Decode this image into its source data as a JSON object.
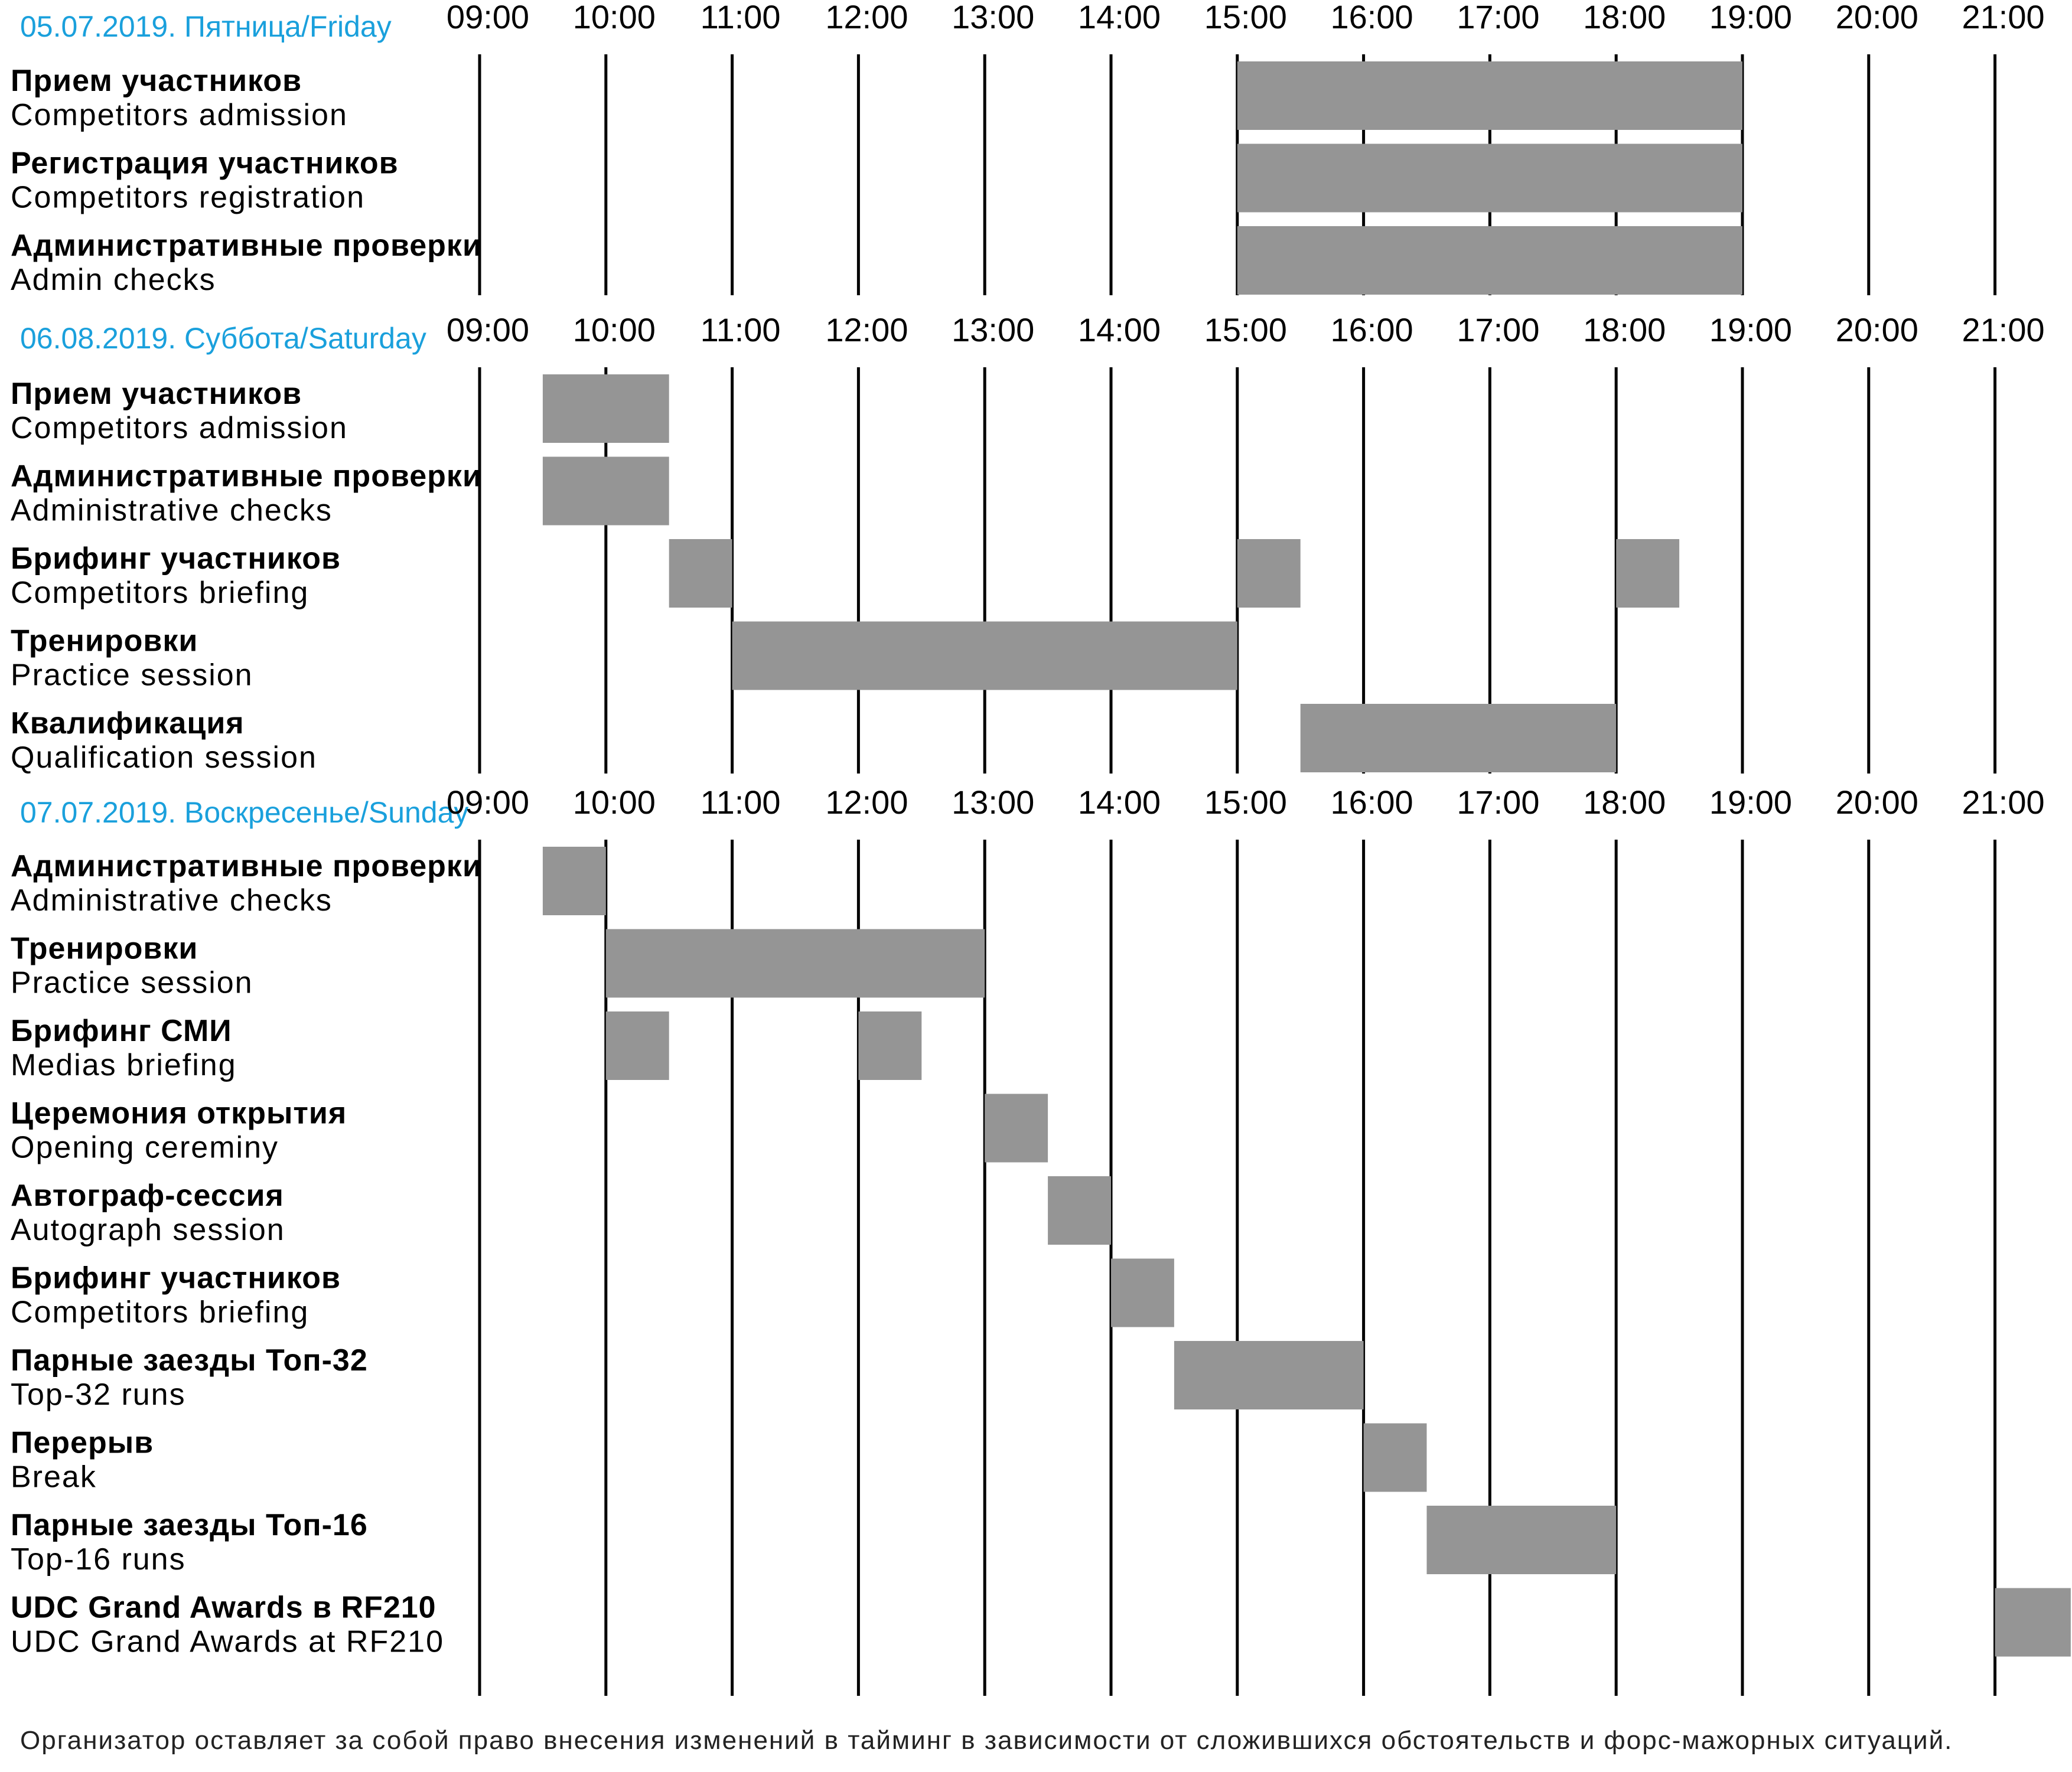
{
  "chart_data": {
    "type": "gantt",
    "hour_ticks": [
      "09:00",
      "10:00",
      "11:00",
      "12:00",
      "13:00",
      "14:00",
      "15:00",
      "16:00",
      "17:00",
      "18:00",
      "19:00",
      "20:00",
      "21:00"
    ],
    "days": [
      {
        "title": "05.07.2019. Пятница/Friday",
        "rows": [
          {
            "ru": "Прием участников",
            "en": "Competitors admission",
            "bars": [
              [
                15,
                19
              ]
            ]
          },
          {
            "ru": "Регистрация участников",
            "en": "Competitors registration",
            "bars": [
              [
                15,
                19
              ]
            ]
          },
          {
            "ru": "Административные проверки",
            "en": "Admin checks",
            "bars": [
              [
                15,
                19
              ]
            ]
          }
        ]
      },
      {
        "title": "06.08.2019. Суббота/Saturday",
        "rows": [
          {
            "ru": "Прием участников",
            "en": "Competitors admission",
            "bars": [
              [
                9.5,
                10.5
              ]
            ]
          },
          {
            "ru": "Административные проверки",
            "en": "Administrative checks",
            "bars": [
              [
                9.5,
                10.5
              ]
            ]
          },
          {
            "ru": "Брифинг участников",
            "en": "Competitors briefing",
            "bars": [
              [
                10.5,
                11
              ],
              [
                15,
                15.5
              ],
              [
                18,
                18.5
              ]
            ]
          },
          {
            "ru": "Тренировки",
            "en": "Practice session",
            "bars": [
              [
                11,
                15
              ]
            ]
          },
          {
            "ru": "Квалификация",
            "en": "Qualification session",
            "bars": [
              [
                15.5,
                18
              ]
            ]
          }
        ]
      },
      {
        "title": "07.07.2019. Воскресенье/Sunday",
        "rows": [
          {
            "ru": "Административные проверки",
            "en": "Administrative checks",
            "bars": [
              [
                9.5,
                10
              ]
            ]
          },
          {
            "ru": "Тренировки",
            "en": "Practice session",
            "bars": [
              [
                10,
                13
              ]
            ]
          },
          {
            "ru": "Брифинг СМИ",
            "en": "Medias briefing",
            "bars": [
              [
                10,
                10.5
              ],
              [
                12,
                12.5
              ]
            ]
          },
          {
            "ru": "Церемония открытия",
            "en": "Opening cereminy",
            "bars": [
              [
                13,
                13.5
              ]
            ]
          },
          {
            "ru": "Автограф-сессия",
            "en": "Autograph session",
            "bars": [
              [
                13.5,
                14
              ]
            ]
          },
          {
            "ru": "Брифинг участников",
            "en": "Competitors briefing",
            "bars": [
              [
                14,
                14.5
              ]
            ]
          },
          {
            "ru": "Парные заезды Топ-32",
            "en": "Top-32 runs",
            "bars": [
              [
                14.5,
                16
              ]
            ]
          },
          {
            "ru": "Перерыв",
            "en": "Break",
            "bars": [
              [
                16,
                16.5
              ]
            ]
          },
          {
            "ru": "Парные заезды Топ-16",
            "en": "Top-16 runs",
            "bars": [
              [
                16.5,
                18
              ]
            ]
          },
          {
            "ru": "UDC Grand Awards в RF210",
            "en": "UDC Grand Awards at RF210",
            "bars": [
              [
                21,
                21.6
              ]
            ]
          }
        ]
      }
    ]
  },
  "footnote": "Организатор оставляет за собой право внесения изменений в тайминг в зависимости от сложившихся обстоятельств и форс-мажорных ситуаций.",
  "colors": {
    "day_title": "#1aa0dc",
    "bar": "#959595",
    "grid": "#000000",
    "text": "#000000"
  }
}
